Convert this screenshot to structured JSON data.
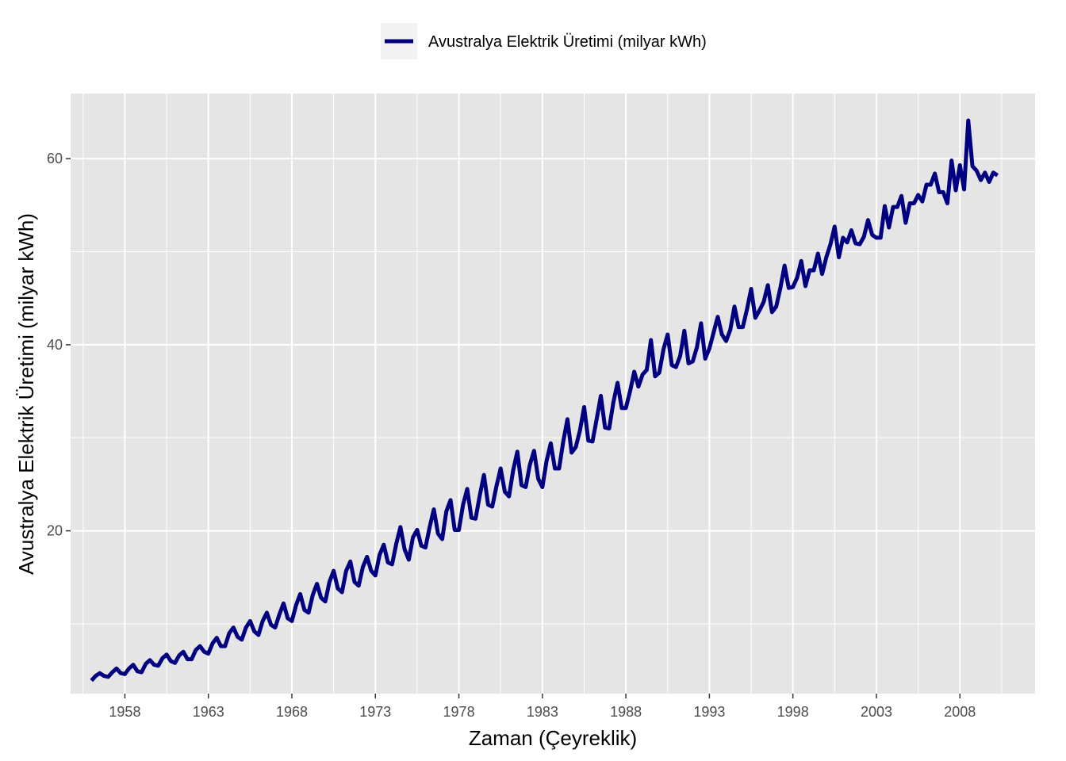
{
  "chart_data": {
    "type": "line",
    "title": "",
    "xlabel": "Zaman (Çeyreklik)",
    "ylabel": "Avustralya Elektrik Üretimi (milyar kWh)",
    "xlim": [
      1954.75,
      2012.5
    ],
    "ylim": [
      2.5,
      67
    ],
    "x_major_ticks": [
      1958,
      1963,
      1968,
      1973,
      1978,
      1983,
      1988,
      1993,
      1998,
      2003,
      2008
    ],
    "x_minor_ticks": [
      1955.5,
      1960.5,
      1965.5,
      1970.5,
      1975.5,
      1980.5,
      1985.5,
      1990.5,
      1995.5,
      2000.5,
      2005.5,
      2010.5
    ],
    "y_major_ticks": [
      20,
      40,
      60
    ],
    "y_minor_ticks": [
      10,
      30,
      50
    ],
    "grid": true,
    "legend_position": "top",
    "background_color": "#e5e5e5",
    "grid_color": "#ffffff",
    "series": [
      {
        "name": "Avustralya Elektrik Üretimi (milyar kWh)",
        "color": "#000080",
        "start_year": 1956,
        "start_quarter": 1,
        "frequency": 4,
        "values": [
          3.9,
          4.4,
          4.7,
          4.4,
          4.3,
          4.8,
          5.2,
          4.7,
          4.6,
          5.2,
          5.6,
          4.9,
          4.8,
          5.7,
          6.1,
          5.6,
          5.5,
          6.3,
          6.7,
          6.0,
          5.8,
          6.6,
          7.0,
          6.2,
          6.2,
          7.2,
          7.6,
          7.0,
          6.8,
          7.9,
          8.5,
          7.6,
          7.6,
          9.0,
          9.6,
          8.6,
          8.3,
          9.6,
          10.3,
          9.2,
          8.8,
          10.3,
          11.2,
          9.9,
          9.6,
          11.0,
          12.2,
          10.6,
          10.3,
          12.0,
          13.2,
          11.5,
          11.2,
          13.1,
          14.3,
          12.8,
          12.4,
          14.5,
          15.7,
          13.8,
          13.4,
          15.7,
          16.7,
          14.5,
          14.1,
          16.1,
          17.2,
          15.7,
          15.2,
          17.4,
          18.5,
          16.6,
          16.4,
          18.6,
          20.4,
          18.0,
          16.9,
          19.3,
          20.1,
          18.4,
          18.2,
          20.4,
          22.3,
          19.7,
          19.1,
          22.1,
          23.3,
          20.1,
          20.1,
          22.8,
          24.5,
          21.4,
          21.3,
          23.8,
          26.0,
          22.8,
          22.6,
          24.8,
          26.7,
          24.2,
          23.7,
          26.5,
          28.5,
          24.9,
          24.7,
          27.1,
          28.6,
          25.6,
          24.7,
          27.5,
          29.4,
          26.7,
          26.7,
          29.6,
          32.0,
          28.4,
          29.0,
          30.8,
          33.3,
          29.7,
          29.6,
          32.0,
          34.5,
          31.1,
          31.0,
          33.8,
          35.9,
          33.2,
          33.2,
          35.0,
          37.1,
          35.5,
          36.8,
          37.3,
          40.5,
          36.6,
          37.0,
          39.5,
          41.1,
          37.8,
          37.6,
          38.8,
          41.5,
          38.0,
          38.2,
          39.7,
          42.3,
          38.5,
          39.6,
          41.3,
          43.0,
          41.1,
          40.4,
          41.6,
          44.1,
          41.9,
          41.9,
          43.8,
          46.0,
          42.9,
          43.7,
          44.6,
          46.4,
          43.5,
          44.1,
          46.1,
          48.5,
          46.1,
          46.2,
          47.2,
          49.0,
          46.3,
          48.0,
          48.0,
          49.8,
          47.6,
          49.4,
          50.8,
          52.7,
          49.4,
          51.5,
          51.0,
          52.3,
          50.9,
          50.8,
          51.6,
          53.4,
          51.8,
          51.5,
          51.5,
          54.9,
          52.6,
          54.8,
          54.8,
          56.0,
          53.1,
          55.2,
          55.2,
          56.1,
          55.4,
          57.2,
          57.2,
          58.4,
          56.4,
          56.4,
          55.2,
          59.8,
          56.6,
          59.3,
          56.7,
          64.1,
          59.2,
          58.7,
          57.7,
          58.5,
          57.5,
          58.5,
          58.2
        ]
      }
    ]
  }
}
